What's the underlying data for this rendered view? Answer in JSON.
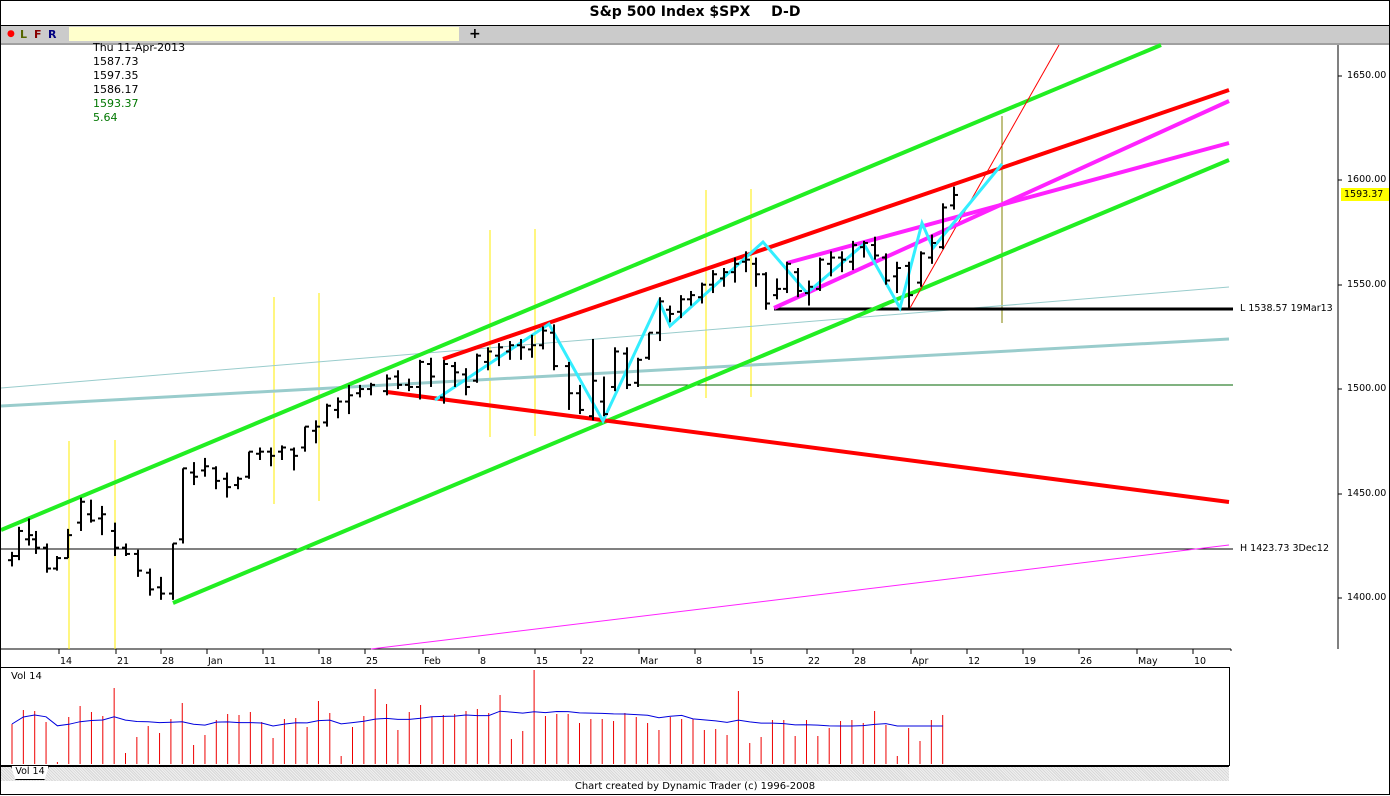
{
  "header": {
    "title": "S&p 500 Index $SPX",
    "period": "D-D"
  },
  "infobar": {
    "indicator_dot_color": "#ff0000",
    "buttons": [
      {
        "label": "L",
        "color": "#556600"
      },
      {
        "label": "F",
        "color": "#880000"
      },
      {
        "label": "R",
        "color": "#000080"
      }
    ],
    "quote": {
      "date": "Thu 11-Apr-2013",
      "open": "1587.73",
      "high": "1597.35",
      "low": "1586.17",
      "close": "1593.37",
      "change": "5.64"
    },
    "add_icon": "+"
  },
  "price_axis": {
    "labels": [
      "1650.00",
      "1600.00",
      "1550.00",
      "1500.00",
      "1450.00",
      "1400.00"
    ],
    "last_price": "1593.37"
  },
  "annotations": {
    "low_label": "L 1538.57 19Mar13",
    "high_label": "H 1423.73 3Dec12"
  },
  "time_axis": {
    "labels": [
      "14",
      "21",
      "28",
      "Jan",
      "11",
      "18",
      "25",
      "Feb",
      "8",
      "15",
      "22",
      "Mar",
      "8",
      "15",
      "22",
      "28",
      "Apr",
      "12",
      "19",
      "26",
      "May",
      "10"
    ]
  },
  "volume_panel": {
    "title": "Vol 14",
    "tab_label": "Vol 14"
  },
  "footer": {
    "credit": "Chart created by Dynamic Trader  (c) 1996-2008"
  },
  "colors": {
    "channel_green": "#22ee22",
    "channel_red": "#ff0000",
    "wave_cyan": "#33eeff",
    "magenta": "#ff22ff",
    "teal_line": "#99cccc",
    "time_cycle_yellow": "#ffee00",
    "volume_bar": "#ee0000",
    "volume_avg": "#0000dd"
  },
  "chart_data": {
    "type": "ohlc",
    "title": "S&p 500 Index $SPX  D-D",
    "xlabel": "",
    "ylabel": "",
    "ylim": [
      1375,
      1665
    ],
    "x_ticks": [
      "14 Dec",
      "21 Dec",
      "28 Dec",
      "Jan",
      "11 Jan",
      "18 Jan",
      "25 Jan",
      "Feb",
      "8 Feb",
      "15 Feb",
      "22 Feb",
      "Mar",
      "8 Mar",
      "15 Mar",
      "22 Mar",
      "28 Mar",
      "Apr",
      "12 Apr",
      "19 Apr",
      "26 Apr",
      "May",
      "10 May"
    ],
    "y_ticks": [
      1400,
      1450,
      1500,
      1550,
      1600,
      1650
    ],
    "last_bar": {
      "date": "Thu 11-Apr-2013",
      "open": 1587.73,
      "high": 1597.35,
      "low": 1586.17,
      "close": 1593.37,
      "change": 5.64
    },
    "approx_closes": [
      {
        "date": "2012-12-10",
        "close": 1418
      },
      {
        "date": "2012-12-18",
        "close": 1446
      },
      {
        "date": "2012-12-21",
        "close": 1430
      },
      {
        "date": "2012-12-28",
        "close": 1402
      },
      {
        "date": "2012-12-31",
        "close": 1426
      },
      {
        "date": "2013-01-02",
        "close": 1462
      },
      {
        "date": "2013-01-11",
        "close": 1472
      },
      {
        "date": "2013-01-18",
        "close": 1485
      },
      {
        "date": "2013-01-25",
        "close": 1503
      },
      {
        "date": "2013-02-01",
        "close": 1513
      },
      {
        "date": "2013-02-08",
        "close": 1518
      },
      {
        "date": "2013-02-15",
        "close": 1520
      },
      {
        "date": "2013-02-20",
        "close": 1511
      },
      {
        "date": "2013-02-25",
        "close": 1488
      },
      {
        "date": "2013-03-01",
        "close": 1518
      },
      {
        "date": "2013-03-08",
        "close": 1551
      },
      {
        "date": "2013-03-14",
        "close": 1563
      },
      {
        "date": "2013-03-19",
        "close": 1548
      },
      {
        "date": "2013-03-28",
        "close": 1569
      },
      {
        "date": "2013-04-05",
        "close": 1553
      },
      {
        "date": "2013-04-09",
        "close": 1568
      },
      {
        "date": "2013-04-11",
        "close": 1593.37
      }
    ],
    "horizontal_levels": [
      {
        "label": "L 1538.57 19Mar13",
        "value": 1538.57
      },
      {
        "label": "H 1423.73 3Dec12",
        "value": 1423.73
      },
      {
        "label": "",
        "value": 1501
      }
    ],
    "drawn_lines": [
      {
        "name": "upper green channel",
        "color": "green",
        "from": [
          "2012-12-05",
          1432
        ],
        "to": [
          "2013-05-06",
          1665
        ]
      },
      {
        "name": "lower green channel",
        "color": "green",
        "from": [
          "2012-12-28",
          1397
        ],
        "to": [
          "2013-05-13",
          1610
        ]
      },
      {
        "name": "upper red line",
        "color": "red",
        "from": [
          "2013-02-01",
          1514
        ],
        "to": [
          "2013-05-13",
          1644
        ]
      },
      {
        "name": "lower red line",
        "color": "red",
        "from": [
          "2013-01-25",
          1498
        ],
        "to": [
          "2013-05-13",
          1446
        ]
      },
      {
        "name": "magenta upper",
        "color": "magenta",
        "from": [
          "2013-03-19",
          1562
        ],
        "to": [
          "2013-05-13",
          1617
        ]
      },
      {
        "name": "magenta lower",
        "color": "magenta",
        "from": [
          "2013-03-19",
          1540
        ],
        "to": [
          "2013-05-13",
          1637
        ]
      },
      {
        "name": "magenta thin",
        "color": "magenta",
        "from": [
          "2013-01-25",
          1377
        ],
        "to": [
          "2013-05-13",
          1425
        ]
      }
    ],
    "volume": {
      "label": "Vol 14",
      "bars": 86,
      "moving_average_period": 14
    }
  }
}
